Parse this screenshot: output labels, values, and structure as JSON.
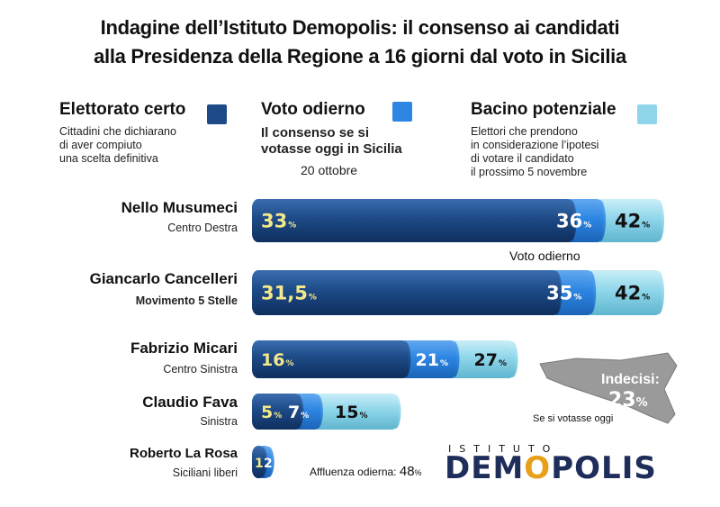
{
  "title": {
    "line1": "Indagine dell’Istituto Demopolis: il consenso ai candidati",
    "line2": "alla Presidenza della Regione a 16 giorni dal voto in Sicilia"
  },
  "legend": {
    "certo": {
      "label": "Elettorato certo",
      "desc": [
        "Cittadini che dichiarano",
        "di aver compiuto",
        "una scelta definitiva"
      ],
      "color": "#1d4a86"
    },
    "odierno": {
      "label": "Voto odierno",
      "desc": [
        "Il consenso se si",
        "votasse oggi in Sicilia"
      ],
      "date": "20 ottobre",
      "color": "#2d86e2"
    },
    "potenziale": {
      "label": "Bacino potenziale",
      "desc": [
        "Elettori che prendono",
        "in considerazione l’ipotesi",
        "di votare il candidato",
        "il prossimo 5 novembre"
      ],
      "color": "#8fd6ea"
    }
  },
  "chart_data": {
    "type": "bar",
    "orientation": "horizontal",
    "stacked_overlay": true,
    "title": "Indagine dell’Istituto Demopolis: il consenso ai candidati alla Presidenza della Regione a 16 giorni dal voto in Sicilia",
    "unit": "%",
    "xlim": [
      0,
      42
    ],
    "categories": [
      "Nello Musumeci",
      "Giancarlo Cancelleri",
      "Fabrizio Micari",
      "Claudio Fava",
      "Roberto La Rosa"
    ],
    "parties": [
      "Centro Destra",
      "Movimento 5 Stelle",
      "Centro Sinistra",
      "Sinistra",
      "Siciliani liberi"
    ],
    "series": [
      {
        "name": "Elettorato certo",
        "values": [
          33,
          31.5,
          16,
          5,
          1
        ],
        "labels": [
          "33",
          "31,5",
          "16",
          "5",
          "1"
        ]
      },
      {
        "name": "Voto odierno",
        "values": [
          36,
          35,
          21,
          7,
          2
        ],
        "labels": [
          "36",
          "35",
          "21",
          "7",
          "2"
        ]
      },
      {
        "name": "Bacino potenziale",
        "values": [
          42,
          42,
          27,
          15,
          null
        ],
        "labels": [
          "42",
          "42",
          "27",
          "15",
          ""
        ]
      }
    ],
    "annotations": [
      "Voto odierno"
    ]
  },
  "footer": {
    "indecisi_label": "Indecisi:",
    "indecisi_value": "23",
    "indecisi_unit": "%",
    "indecisi_note": "Se si votasse oggi",
    "affluenza_label": "Affluenza odierna:",
    "affluenza_value": "48",
    "affluenza_unit": "%",
    "logo_top": "ISTITUTO",
    "logo_main_a": "DEM",
    "logo_main_o": "O",
    "logo_main_b": "POLIS"
  },
  "colors": {
    "dark": "#1d4a86",
    "mid": "#2d86e2",
    "light": "#8fd6ea",
    "label_yellow": "#f4e88a"
  }
}
